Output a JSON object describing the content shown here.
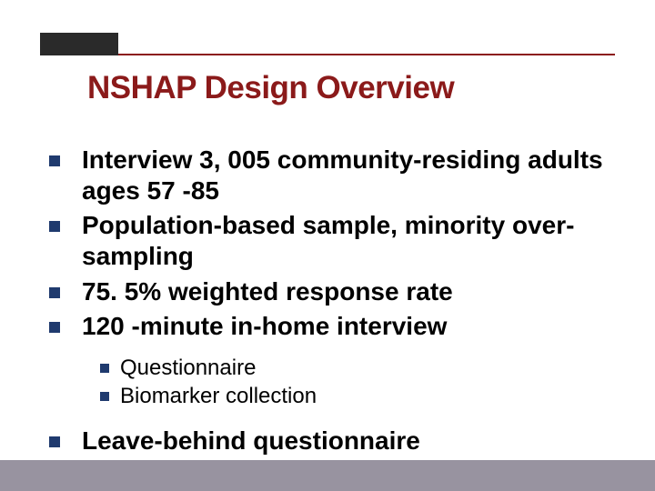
{
  "colors": {
    "background": "#ffffff",
    "title": "#8b1a1a",
    "text": "#000000",
    "bullet": "#1f3a6e",
    "topbar_left": "#2a2a2a",
    "topbar_line": "#8b1a1a",
    "bottom_band": "#9893a0"
  },
  "title": "NSHAP Design Overview",
  "bullets": [
    {
      "level": 1,
      "text": "Interview 3, 005 community-residing adults ages 57 -85"
    },
    {
      "level": 1,
      "text": "Population-based sample, minority over-sampling"
    },
    {
      "level": 1,
      "text": "75. 5% weighted response rate"
    },
    {
      "level": 1,
      "text": "120 -minute in-home interview"
    }
  ],
  "sub_bullets": [
    {
      "level": 2,
      "text": "Questionnaire"
    },
    {
      "level": 2,
      "text": "Biomarker collection"
    }
  ],
  "last_bullet": {
    "level": 1,
    "text": "Leave-behind questionnaire"
  }
}
